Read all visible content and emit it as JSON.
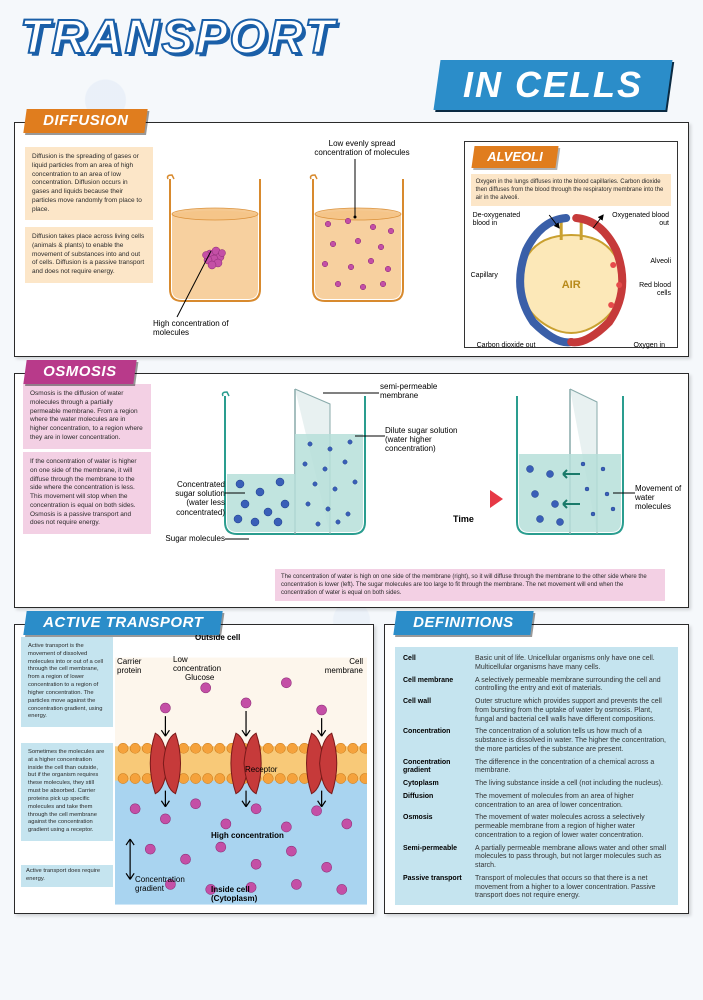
{
  "title": {
    "line1": "TRANSPORT",
    "line2": "IN CELLS"
  },
  "colors": {
    "title_banner": "#2b8dc9",
    "title_outline": "#1a5fa8",
    "diffusion_tab": "#e07d1e",
    "alveoli_tab": "#e07d1e",
    "osmosis_tab": "#b83a8a",
    "active_tab": "#2b8dc9",
    "defs_tab": "#2b8dc9",
    "note_orange": "#fce6c8",
    "note_pink": "#f3d0e4",
    "note_blue": "#c5e4ef",
    "beaker_orange_fill": "#f5c487",
    "beaker_orange_stroke": "#d88a2e",
    "beaker_teal_fill": "#b6dfd9",
    "beaker_teal_stroke": "#2a9d8f",
    "particle_pink": "#c44fa6",
    "particle_blue": "#3a5fb8",
    "arrow_red": "#e63946",
    "membrane_orange": "#f5a23c",
    "cytoplasm_blue": "#a9d4f0",
    "air_yellow": "#f8e16c",
    "capillary_red": "#c63a3a",
    "capillary_blue": "#3a5fa8",
    "black": "#1a1a1a"
  },
  "diffusion": {
    "tab": "DIFFUSION",
    "note1": "Diffusion is the spreading of gases or liquid particles from an area of high concentration to an area of low concentration. Diffusion occurs in gases and liquids because their particles move randomly from place to place.",
    "note2": "Diffusion takes place across living cells (animals & plants) to enable the movement of substances into and out of cells. Diffusion is a passive transport and does not require energy.",
    "beaker1_label": "High concentration of molecules",
    "beaker2_label": "Low evenly spread concentration of molecules"
  },
  "alveoli": {
    "tab": "ALVEOLI",
    "note": "Oxygen in the lungs diffuses into the blood capillaries. Carbon dioxide then diffuses from the blood through the respiratory membrane into the air in the alveoli.",
    "labels": {
      "deoxy": "De-oxygenated blood in",
      "oxy_out": "Oxygenated blood out",
      "capillary": "Capillary",
      "alveoli": "Alveoli",
      "air": "AIR",
      "rbc": "Red blood cells",
      "co2": "Carbon dioxide out",
      "o2": "Oxygen in"
    }
  },
  "osmosis": {
    "tab": "OSMOSIS",
    "note1": "Osmosis is the diffusion of water molecules through a partially permeable membrane. From a region where the water molecules are in higher concentration, to a region where they are in lower concentration.",
    "note2": "If the concentration of water is higher on one side of the membrane, it will diffuse through the membrane to the side where the concentration is less. This movement will stop when the concentration is equal on both sides. Osmosis is a passive transport and does not require energy.",
    "caption": "The concentration of water is high on one side of the membrane (right), so it will diffuse through the membrane to the other side where the concentration is lower (left). The sugar molecules are too large to fit through the membrane. The net movement will end when the concentration of water is equal on both sides.",
    "labels": {
      "membrane": "semi-permeable membrane",
      "dilute": "Dilute sugar solution (water higher concentration)",
      "concentrated": "Concentrated sugar solution (water less concentrated)",
      "sugar": "Sugar molecules",
      "time": "Time",
      "movement": "Movement of water molecules"
    }
  },
  "active": {
    "tab": "ACTIVE TRANSPORT",
    "note1": "Active transport is the movement of dissolved molecules into or out of a cell through the cell membrane, from a region of lower concentration to a region of higher concentration. The particles move against the concentration gradient, using energy.",
    "note2": "Sometimes the molecules are at a higher concentration inside the cell than outside, but if the organism requires these molecules, they still must be absorbed. Carrier proteins pick up specific molecules and take them through the cell membrane against the concentration gradient using a receptor.",
    "note3": "Active transport does require energy.",
    "labels": {
      "outside": "Outside cell",
      "carrier": "Carrier protein",
      "low": "Low concentration",
      "glucose": "Glucose",
      "membrane": "Cell membrane",
      "receptor": "Receptor",
      "gradient": "Concentration gradient",
      "high": "High concentration",
      "inside": "Inside cell (Cytoplasm)"
    }
  },
  "definitions": {
    "tab": "DEFINITIONS",
    "rows": [
      {
        "term": "Cell",
        "desc": "Basic unit of life. Unicellular organisms only have one cell. Multicellular organisms have many cells."
      },
      {
        "term": "Cell membrane",
        "desc": "A selectively permeable membrane surrounding the cell and controlling the entry and exit of materials."
      },
      {
        "term": "Cell wall",
        "desc": "Outer structure which provides support and prevents the cell from bursting from the uptake of water by osmosis. Plant, fungal and bacterial cell walls have different compositions."
      },
      {
        "term": "Concentration",
        "desc": "The concentration of a solution tells us how much of a substance is dissolved in water. The higher the concentration, the more particles of the substance are present."
      },
      {
        "term": "Concentration gradient",
        "desc": "The difference in the concentration of a chemical across a membrane."
      },
      {
        "term": "Cytoplasm",
        "desc": "The living substance inside a cell (not including the nucleus)."
      },
      {
        "term": "Diffusion",
        "desc": "The movement of molecules from an area of higher concentration to an area of lower concentration."
      },
      {
        "term": "Osmosis",
        "desc": "The movement of water molecules across a selectively permeable membrane from a region of higher water concentration to a region of lower water concentration."
      },
      {
        "term": "Semi-permeable",
        "desc": "A partially permeable membrane allows water and other small molecules to pass through, but not larger molecules such as starch."
      },
      {
        "term": "Passive transport",
        "desc": "Transport of molecules that occurs so that there is a net movement from a higher to a lower concentration. Passive transport does not require energy."
      }
    ]
  }
}
